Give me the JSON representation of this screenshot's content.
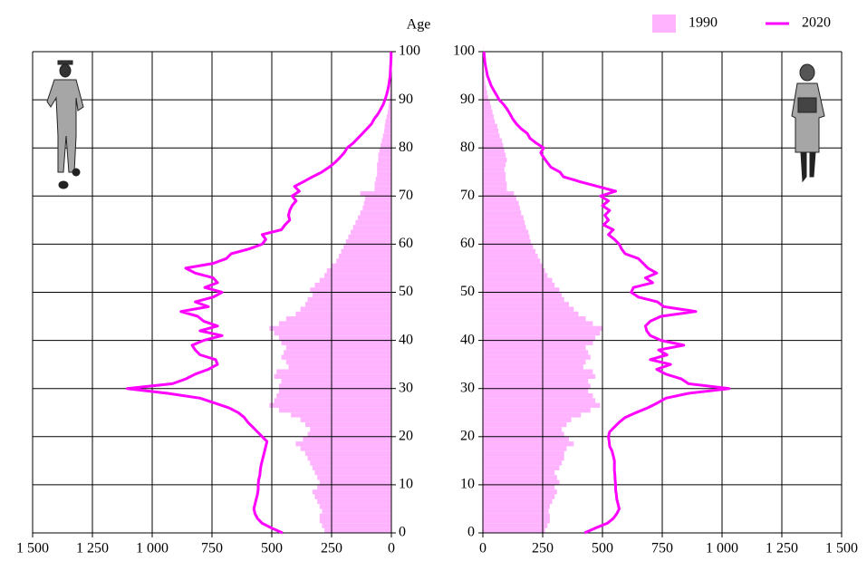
{
  "chart_data": {
    "type": "pyramid",
    "y_label": "Age",
    "categories": [
      0,
      1,
      2,
      3,
      4,
      5,
      6,
      7,
      8,
      9,
      10,
      11,
      12,
      13,
      14,
      15,
      16,
      17,
      18,
      19,
      20,
      21,
      22,
      23,
      24,
      25,
      26,
      27,
      28,
      29,
      30,
      31,
      32,
      33,
      34,
      35,
      36,
      37,
      38,
      39,
      40,
      41,
      42,
      43,
      44,
      45,
      46,
      47,
      48,
      49,
      50,
      51,
      52,
      53,
      54,
      55,
      56,
      57,
      58,
      59,
      60,
      61,
      62,
      63,
      64,
      65,
      66,
      67,
      68,
      69,
      70,
      71,
      72,
      73,
      74,
      75,
      76,
      77,
      78,
      79,
      80,
      81,
      82,
      83,
      84,
      85,
      86,
      87,
      88,
      89,
      90,
      91,
      92,
      93,
      94,
      95,
      96,
      97,
      98,
      99,
      100
    ],
    "xlim": [
      0,
      1500
    ],
    "xticks": [
      0,
      250,
      500,
      750,
      {
        "value": 1000,
        "label": "1 000"
      },
      {
        "value": 1250,
        "label": "1 250"
      },
      {
        "value": 1500,
        "label": "1 500"
      }
    ],
    "ylim": [
      0,
      100
    ],
    "yticks": [
      0,
      10,
      20,
      30,
      40,
      50,
      60,
      70,
      80,
      90,
      100
    ],
    "grid": true,
    "legend": "top-right",
    "series": [
      {
        "name": "1990",
        "color": "#ffb3ff",
        "style": "bar",
        "male": [
          280,
          290,
          300,
          300,
          290,
          300,
          310,
          320,
          330,
          310,
          300,
          310,
          320,
          330,
          340,
          350,
          360,
          380,
          400,
          370,
          350,
          340,
          360,
          380,
          420,
          470,
          510,
          490,
          480,
          470,
          470,
          460,
          490,
          480,
          430,
          440,
          460,
          450,
          440,
          460,
          470,
          490,
          510,
          470,
          440,
          400,
          380,
          360,
          350,
          330,
          340,
          320,
          300,
          280,
          270,
          250,
          230,
          220,
          210,
          200,
          190,
          180,
          170,
          160,
          150,
          140,
          130,
          120,
          115,
          110,
          130,
          70,
          70,
          65,
          60,
          60,
          60,
          55,
          55,
          50,
          45,
          40,
          35,
          30,
          28,
          25,
          20,
          15,
          12,
          10,
          8,
          6,
          5,
          4,
          3,
          2,
          1,
          1,
          0,
          0,
          0
        ],
        "female": [
          260,
          270,
          280,
          280,
          275,
          280,
          290,
          300,
          310,
          300,
          320,
          310,
          300,
          320,
          330,
          340,
          340,
          350,
          380,
          360,
          340,
          330,
          350,
          370,
          410,
          450,
          490,
          470,
          460,
          440,
          450,
          440,
          470,
          460,
          420,
          430,
          450,
          440,
          430,
          460,
          470,
          490,
          500,
          460,
          430,
          400,
          380,
          360,
          340,
          330,
          320,
          300,
          290,
          270,
          260,
          250,
          240,
          230,
          220,
          210,
          200,
          195,
          190,
          180,
          175,
          170,
          160,
          155,
          150,
          140,
          130,
          100,
          100,
          95,
          95,
          90,
          95,
          100,
          95,
          90,
          85,
          80,
          70,
          65,
          60,
          50,
          45,
          40,
          35,
          30,
          22,
          18,
          14,
          10,
          8,
          6,
          4,
          3,
          2,
          1,
          1
        ]
      },
      {
        "name": "2020",
        "color": "#ff00ff",
        "style": "line",
        "male": [
          455,
          500,
          540,
          560,
          570,
          575,
          570,
          565,
          560,
          557,
          557,
          555,
          550,
          548,
          545,
          540,
          535,
          530,
          525,
          520,
          540,
          560,
          580,
          600,
          615,
          640,
          680,
          740,
          800,
          935,
          1105,
          915,
          860,
          820,
          765,
          727,
          735,
          800,
          820,
          833,
          785,
          708,
          800,
          727,
          785,
          810,
          880,
          765,
          820,
          745,
          708,
          780,
          727,
          745,
          820,
          860,
          745,
          690,
          670,
          595,
          540,
          525,
          540,
          460,
          445,
          425,
          430,
          425,
          415,
          398,
          415,
          385,
          405,
          367,
          330,
          290,
          260,
          235,
          215,
          197,
          185,
          160,
          140,
          121,
          102,
          83,
          72,
          57,
          45,
          34,
          27,
          20,
          15,
          11,
          8,
          5,
          4,
          3,
          2,
          1,
          1
        ],
        "female": [
          425,
          470,
          520,
          545,
          560,
          570,
          565,
          560,
          558,
          555,
          555,
          553,
          552,
          550,
          550,
          550,
          545,
          540,
          530,
          528,
          525,
          530,
          550,
          570,
          595,
          640,
          690,
          730,
          765,
          860,
          1030,
          860,
          830,
          765,
          727,
          785,
          700,
          770,
          735,
          840,
          745,
          700,
          685,
          680,
          700,
          745,
          890,
          757,
          730,
          650,
          620,
          630,
          710,
          680,
          727,
          690,
          670,
          650,
          595,
          580,
          570,
          550,
          525,
          545,
          505,
          525,
          510,
          530,
          500,
          525,
          492,
          555,
          480,
          405,
          337,
          322,
          284,
          269,
          254,
          242,
          254,
          223,
          197,
          186,
          160,
          140,
          125,
          114,
          102,
          87,
          68,
          57,
          45,
          34,
          27,
          19,
          15,
          11,
          8,
          6,
          4
        ]
      }
    ]
  }
}
